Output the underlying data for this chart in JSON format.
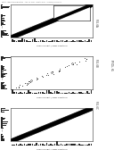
{
  "page_bg": "#ffffff",
  "header_text": "Patent Application Publication   Aug. 12, 2010   Sheet 6 of 11   US 2010/0201987 A1",
  "fig_label": "FIG. 6",
  "panel_labels": [
    "FIG. 6A",
    "FIG. 6B",
    "FIG. 6C"
  ],
  "panel_bg": "#ffffff",
  "band_color": "#000000",
  "bar_color": "#000000",
  "panels": [
    {
      "type": "band_inset"
    },
    {
      "type": "scatter"
    },
    {
      "type": "band"
    }
  ]
}
